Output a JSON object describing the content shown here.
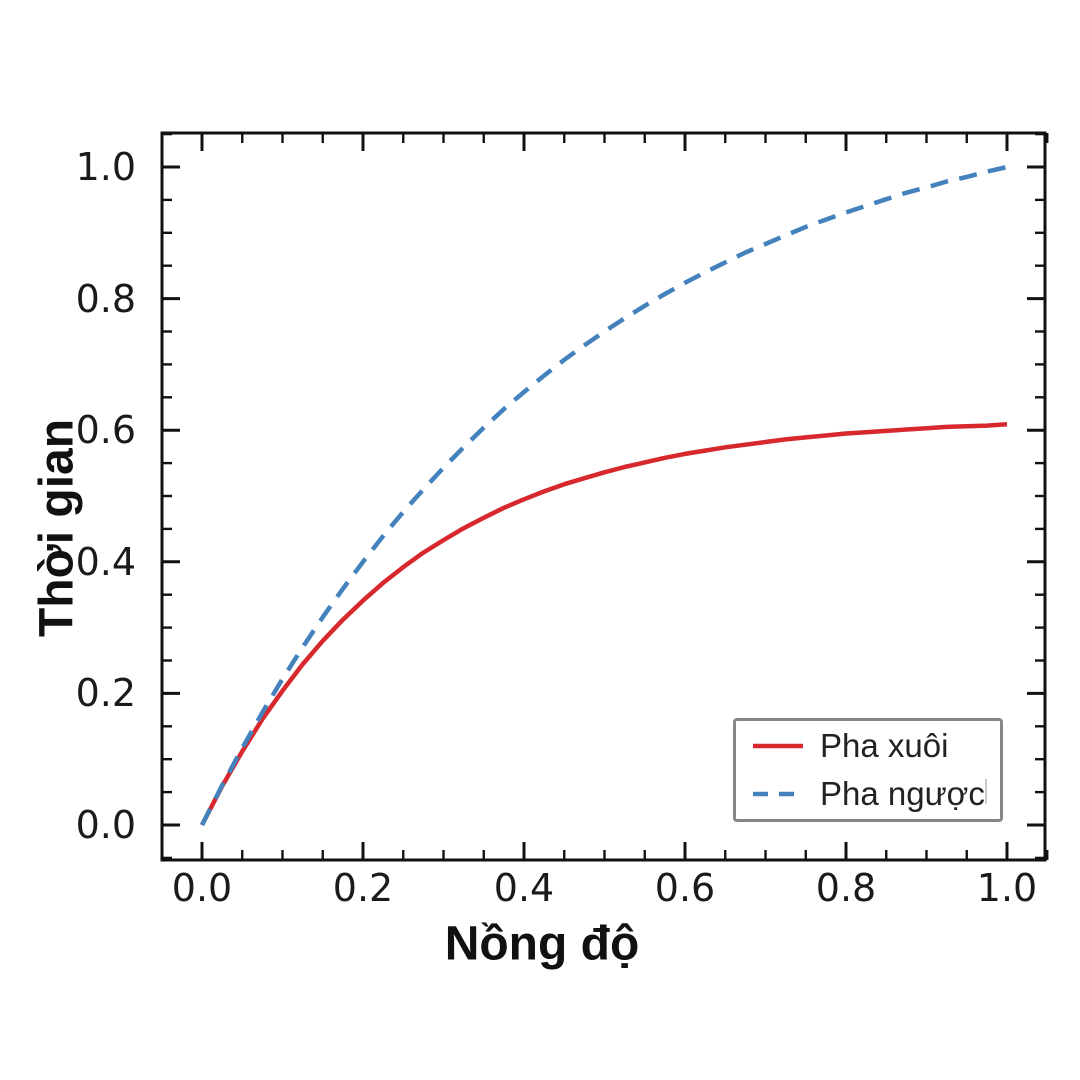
{
  "background_color": "#ffffff",
  "axis_color": "#111111",
  "tick_label_color": "#1a1a1a",
  "legend": {
    "border_color": "#868686",
    "items": [
      {
        "label": "Pha xuôi",
        "style": "solid"
      },
      {
        "label": "Pha ngược",
        "style": "dashed"
      }
    ]
  },
  "chart_data": {
    "type": "line",
    "title": "",
    "xlabel": "Nồng độ",
    "ylabel": "Thời gian",
    "xlim": [
      0,
      1
    ],
    "ylim": [
      0,
      1
    ],
    "axis_margin": 0.05,
    "grid": false,
    "legend_position": "lower right",
    "x_tick_values": [
      0.0,
      0.2,
      0.4,
      0.6,
      0.8,
      1.0
    ],
    "x_tick_labels": [
      "0.0",
      "0.2",
      "0.4",
      "0.6",
      "0.8",
      "1.0"
    ],
    "y_tick_values": [
      0.0,
      0.2,
      0.4,
      0.6,
      0.8,
      1.0
    ],
    "y_tick_labels": [
      "0.0",
      "0.2",
      "0.4",
      "0.6",
      "0.8",
      "1.0"
    ],
    "minor_tick_step": 0.05,
    "x": [
      0,
      0.025,
      0.05,
      0.075,
      0.1,
      0.125,
      0.15,
      0.175,
      0.2,
      0.225,
      0.25,
      0.275,
      0.3,
      0.325,
      0.35,
      0.375,
      0.4,
      0.425,
      0.45,
      0.475,
      0.5,
      0.525,
      0.55,
      0.575,
      0.6,
      0.625,
      0.65,
      0.675,
      0.7,
      0.725,
      0.75,
      0.775,
      0.8,
      0.825,
      0.85,
      0.875,
      0.9,
      0.925,
      0.95,
      0.975,
      1.0
    ],
    "series": [
      {
        "name": "Pha xuôi",
        "color": "#d7282d",
        "line_style": "solid",
        "line_width": 4.5,
        "values": [
          0,
          0.059,
          0.112,
          0.161,
          0.204,
          0.244,
          0.28,
          0.312,
          0.341,
          0.368,
          0.392,
          0.414,
          0.433,
          0.451,
          0.467,
          0.482,
          0.495,
          0.507,
          0.518,
          0.527,
          0.536,
          0.544,
          0.551,
          0.558,
          0.564,
          0.569,
          0.574,
          0.578,
          0.582,
          0.586,
          0.589,
          0.592,
          0.595,
          0.597,
          0.599,
          0.601,
          0.603,
          0.605,
          0.606,
          0.607,
          0.609
        ]
      },
      {
        "name": "Pha ngược",
        "color": "#4382bc",
        "line_style": "dashed",
        "line_width": 4.5,
        "values": [
          0,
          0.06,
          0.117,
          0.171,
          0.222,
          0.27,
          0.316,
          0.359,
          0.4,
          0.439,
          0.476,
          0.51,
          0.543,
          0.574,
          0.604,
          0.632,
          0.658,
          0.683,
          0.707,
          0.729,
          0.75,
          0.77,
          0.789,
          0.807,
          0.824,
          0.84,
          0.855,
          0.87,
          0.883,
          0.896,
          0.909,
          0.92,
          0.931,
          0.941,
          0.951,
          0.961,
          0.969,
          0.978,
          0.985,
          0.993,
          1.0
        ]
      }
    ]
  }
}
